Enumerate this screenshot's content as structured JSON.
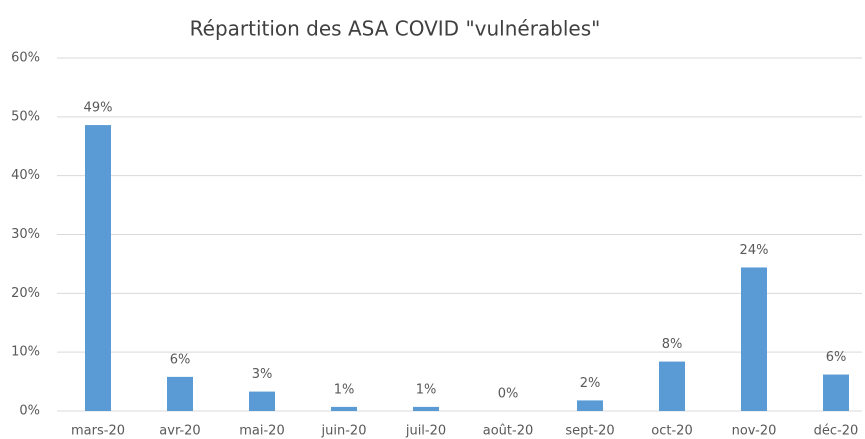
{
  "chart_data": {
    "type": "bar",
    "title": "Répartition des ASA COVID \"vulnérables\"",
    "categories": [
      "mars-20",
      "avr-20",
      "mai-20",
      "juin-20",
      "juil-20",
      "août-20",
      "sept-20",
      "oct-20",
      "nov-20",
      "déc-20"
    ],
    "values": [
      48.6,
      5.8,
      3.3,
      0.7,
      0.7,
      0,
      1.8,
      8.4,
      24.4,
      6.2
    ],
    "value_labels": [
      "49%",
      "6%",
      "3%",
      "1%",
      "1%",
      "0%",
      "2%",
      "8%",
      "24%",
      "6%"
    ],
    "color": "#5b9bd5",
    "ylim": [
      0,
      60
    ],
    "yticks": [
      {
        "value": 0,
        "label": "0%"
      },
      {
        "value": 10,
        "label": "10%"
      },
      {
        "value": 20,
        "label": "20%"
      },
      {
        "value": 30,
        "label": "30%"
      },
      {
        "value": 40,
        "label": "40%"
      },
      {
        "value": 50,
        "label": "50%"
      },
      {
        "value": 60,
        "label": "60%"
      }
    ],
    "grid": true
  }
}
